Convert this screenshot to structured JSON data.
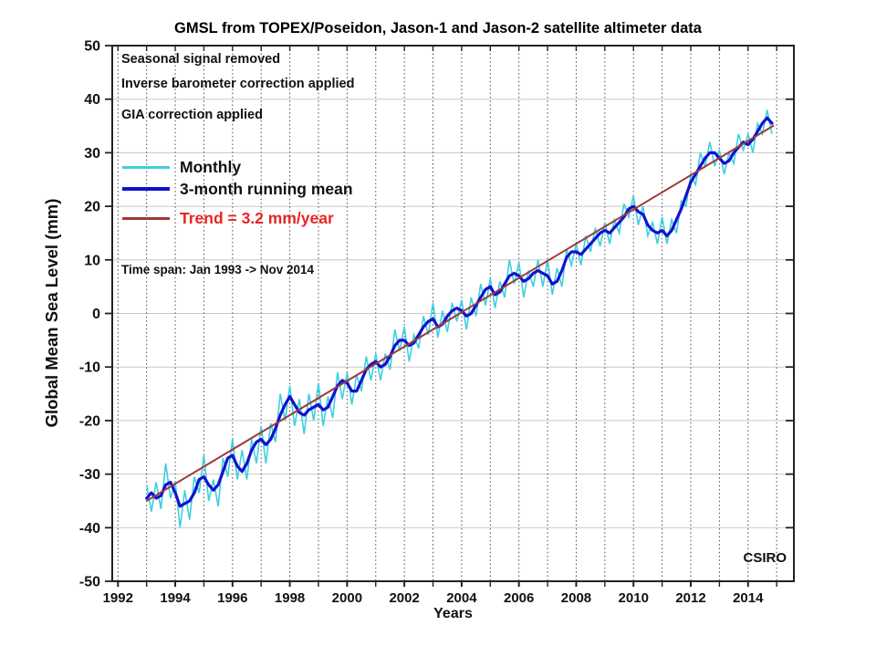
{
  "annotations": {
    "seasonal": "Seasonal signal removed",
    "inverse_barometer": "Inverse barometer correction applied",
    "gia": "GIA correction applied",
    "timespan": "Time span: Jan 1993 -> Nov 2014",
    "source": "CSIRO"
  },
  "colors": {
    "background": "#ffffff",
    "monthly_line": "#3ECFDF",
    "running_mean_line": "#1212CF",
    "trend_line": "#9E3939",
    "trend_text": "#E62622",
    "horizontal_grid": "#c9c9c9",
    "vertical_grid": "#4a4a4a",
    "axis": "#222222",
    "text": "#111111"
  },
  "chart_data": {
    "type": "line",
    "title": "GMSL from TOPEX/Poseidon, Jason-1 and Jason-2 satellite altimeter data",
    "xlabel": "Years",
    "ylabel": "Global Mean Sea Level (mm)",
    "xlim": [
      1991.8,
      2015.6
    ],
    "ylim": [
      -50,
      50
    ],
    "xticks": [
      1992,
      1994,
      1996,
      1998,
      2000,
      2002,
      2004,
      2006,
      2008,
      2010,
      2012,
      2014
    ],
    "xminor_tick_step_years": 1,
    "yticks": [
      -50,
      -40,
      -30,
      -20,
      -10,
      0,
      10,
      20,
      30,
      40,
      50
    ],
    "grid": {
      "horizontal": "solid every 10 mm",
      "vertical": "dotted every year"
    },
    "legend_position": "upper-left inside plot",
    "x": {
      "start": 1993.0,
      "step_years": 0.16667,
      "count": 132,
      "end": 2014.83
    },
    "series": {
      "running_mean": {
        "name": "3-month running mean",
        "color": "#1212CF",
        "y": [
          -34.5,
          -33.5,
          -34.5,
          -34,
          -32,
          -31.5,
          -33.5,
          -36,
          -35.5,
          -35,
          -33.5,
          -31,
          -30.5,
          -32,
          -33,
          -32,
          -29.5,
          -27,
          -26.5,
          -28.5,
          -29.5,
          -28,
          -25.5,
          -24,
          -23.5,
          -24.5,
          -23.5,
          -21.5,
          -19,
          -17,
          -15.5,
          -17,
          -18.5,
          -19,
          -18,
          -17.5,
          -17,
          -18,
          -17.5,
          -15.5,
          -13.5,
          -12.5,
          -13,
          -14.5,
          -14.5,
          -12.5,
          -10.5,
          -9.5,
          -9,
          -10,
          -9.5,
          -8,
          -6,
          -5,
          -5,
          -6,
          -5.5,
          -4,
          -2.5,
          -1.5,
          -1,
          -2.5,
          -2,
          -0.5,
          0.5,
          1,
          0.5,
          -0.5,
          0,
          1.5,
          3,
          4.5,
          5,
          3.5,
          4,
          5.5,
          7,
          7.5,
          7,
          6,
          6.5,
          7.5,
          8,
          7.5,
          7,
          5.5,
          6,
          8,
          10.5,
          11.5,
          11.5,
          11,
          12,
          13,
          14,
          15,
          15.5,
          15,
          16,
          17,
          18,
          19.5,
          20,
          19,
          18.5,
          16.5,
          15.5,
          15,
          15.5,
          14.5,
          15.5,
          17.5,
          19.5,
          22,
          24.5,
          26,
          27.5,
          29,
          30,
          30,
          29,
          28,
          28.5,
          30,
          31,
          32,
          31.5,
          32.5,
          34,
          35.5,
          36.5,
          35.5
        ]
      },
      "monthly": {
        "name": "Monthly",
        "color": "#3ECFDF",
        "definition": "monthly y = running_mean y + y_offsets",
        "y_offsets": [
          2.5,
          -3.5,
          3,
          -2.5,
          4,
          -3,
          2,
          -4,
          2.5,
          -3.5,
          3,
          -2.5,
          4,
          -3,
          2,
          -4,
          2.5,
          -3.5,
          3,
          -2.5,
          4,
          -3,
          2,
          -4,
          2.5,
          -3.5,
          3,
          -2.5,
          4,
          -3,
          2,
          -4,
          2.5,
          -3.5,
          3,
          -2.5,
          4,
          -3,
          2,
          -4,
          2.5,
          -3.5,
          2,
          -2.5,
          3,
          -2,
          2.5,
          -3,
          1.5,
          -2.5,
          2,
          -2.5,
          3,
          -2,
          2.5,
          -3,
          1.5,
          -2.5,
          2,
          -2.5,
          3,
          -2,
          2.5,
          -3,
          1.5,
          -2.5,
          2,
          -2.5,
          3,
          -2,
          2.5,
          -3,
          1.5,
          -2.5,
          2,
          -2.5,
          3,
          -2,
          2.5,
          -3,
          1.5,
          -2.5,
          2,
          -2.5,
          3,
          -2,
          2.5,
          -3,
          1.5,
          -2.5,
          1.5,
          -2,
          2.5,
          -1.5,
          2,
          -2.5,
          1.5,
          -2,
          1.5,
          -2,
          2.5,
          -1.5,
          2,
          -2.5,
          1.5,
          -2,
          1.5,
          -2,
          2.5,
          -1.5,
          2,
          -2.5,
          1.5,
          -2,
          1.5,
          -2,
          2.5,
          -1.5,
          2,
          -2.5,
          1.5,
          -2,
          1.5,
          -2,
          2.5,
          -1.5,
          2,
          -2.5,
          1.5,
          -2,
          1.5,
          -2
        ]
      },
      "trend": {
        "name": "Trend = 3.2 mm/year",
        "rate_mm_per_year": 3.2,
        "color": "#9E3939",
        "x": [
          1993.0,
          2014.9
        ],
        "y": [
          -35.0,
          35.1
        ]
      }
    }
  }
}
